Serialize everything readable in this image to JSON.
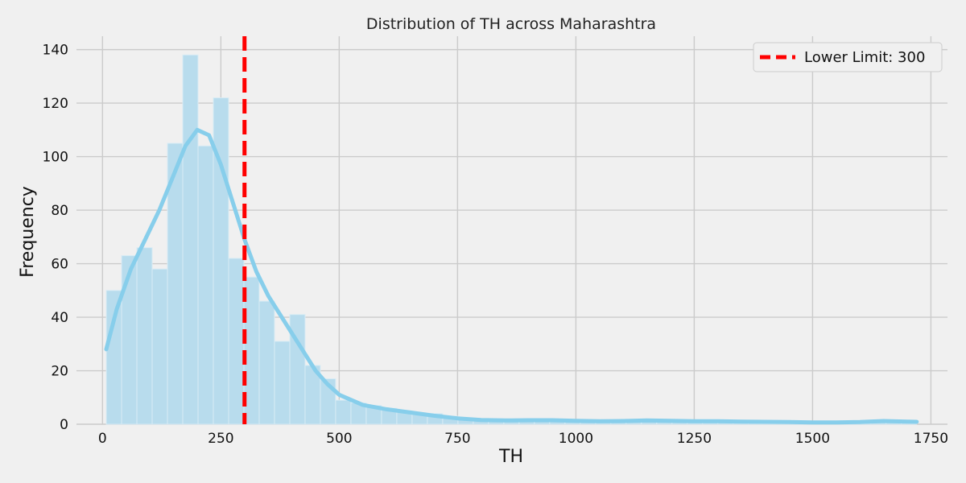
{
  "chart_data": {
    "type": "bar",
    "title": "Distribution of TH across Maharashtra",
    "xlabel": "TH",
    "ylabel": "Frequency",
    "xlim": [
      -55,
      1785
    ],
    "ylim": [
      0,
      145
    ],
    "x_ticks": [
      0,
      250,
      500,
      750,
      1000,
      1250,
      1500,
      1750
    ],
    "y_ticks": [
      0,
      20,
      40,
      60,
      80,
      100,
      120,
      140
    ],
    "grid": true,
    "histogram": {
      "bin_start": 8,
      "bin_width": 32.3,
      "counts": [
        50,
        63,
        66,
        58,
        105,
        138,
        104,
        122,
        62,
        55,
        46,
        31,
        41,
        22,
        17,
        9,
        8,
        7,
        6,
        5,
        4,
        4,
        3,
        2,
        2,
        2,
        1,
        1,
        1,
        1,
        1,
        1,
        1,
        1,
        1,
        1,
        1,
        1,
        1,
        1,
        1,
        1,
        1,
        1,
        1,
        1,
        1,
        1,
        1,
        1,
        1,
        1,
        1
      ],
      "color": "#b8dced",
      "edge_color": "#d9ecf5"
    },
    "kde": {
      "color": "#87ceeb",
      "x": [
        8,
        30,
        60,
        90,
        120,
        150,
        175,
        200,
        225,
        250,
        275,
        300,
        325,
        350,
        375,
        400,
        425,
        450,
        475,
        500,
        550,
        600,
        650,
        700,
        750,
        800,
        850,
        900,
        950,
        1000,
        1050,
        1100,
        1150,
        1200,
        1250,
        1300,
        1350,
        1400,
        1450,
        1500,
        1550,
        1600,
        1650,
        1700,
        1720
      ],
      "y": [
        28,
        43,
        58,
        69,
        80,
        93,
        104,
        110,
        108,
        97,
        83,
        69,
        57,
        48,
        41,
        34,
        27,
        20,
        15,
        11,
        7.2,
        5.6,
        4.4,
        3.2,
        2.2,
        1.6,
        1.4,
        1.5,
        1.5,
        1.3,
        1.1,
        1.2,
        1.4,
        1.3,
        1.1,
        1.1,
        1.0,
        0.9,
        0.8,
        0.7,
        0.7,
        0.8,
        1.2,
        1.0,
        0.9
      ]
    },
    "reference_line": {
      "x": 300,
      "label": "Lower Limit: 300",
      "color": "#ff0000",
      "style": "dashed"
    },
    "legend_position": "top-right"
  }
}
